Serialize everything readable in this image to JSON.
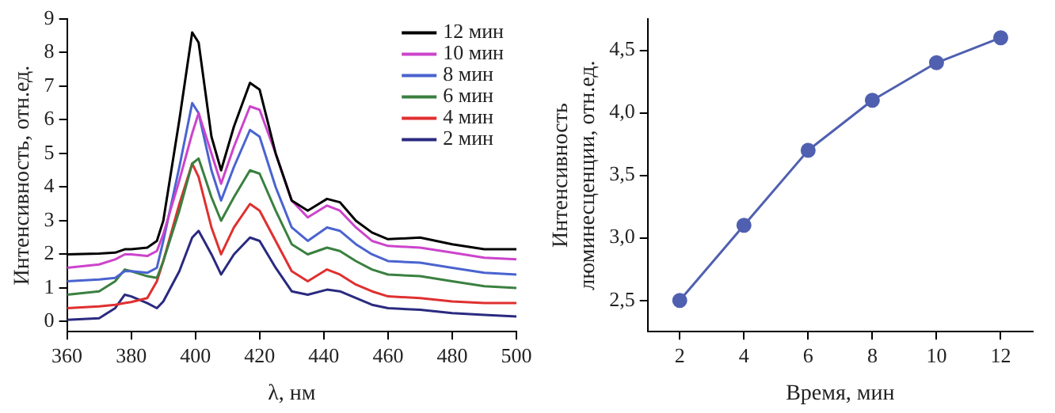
{
  "chart_data": [
    {
      "type": "line",
      "xlabel": "λ, нм",
      "ylabel": "Интенсивность, отн.ед.",
      "xlim": [
        360,
        500
      ],
      "xticks": [
        360,
        380,
        400,
        420,
        440,
        460,
        480,
        500
      ],
      "ylim": [
        -0.3,
        9
      ],
      "yticks": [
        0,
        1,
        2,
        3,
        4,
        5,
        6,
        7,
        8,
        9
      ],
      "grid": false,
      "legend": "top right",
      "marker": "none",
      "line_style": "solid",
      "x": [
        360,
        370,
        375,
        378,
        380,
        385,
        388,
        390,
        395,
        399,
        401,
        405,
        408,
        412,
        417,
        420,
        425,
        430,
        435,
        441,
        445,
        450,
        455,
        460,
        470,
        480,
        490,
        500
      ],
      "series": [
        {
          "name": "12 мин",
          "color": "#000000",
          "values": [
            2.0,
            2.02,
            2.05,
            2.15,
            2.15,
            2.2,
            2.4,
            3.0,
            6.0,
            8.6,
            8.3,
            5.5,
            4.5,
            5.8,
            7.1,
            6.9,
            5.0,
            3.6,
            3.3,
            3.65,
            3.55,
            3.0,
            2.65,
            2.45,
            2.5,
            2.3,
            2.15,
            2.15
          ]
        },
        {
          "name": "10 мин",
          "color": "#cc44cc",
          "values": [
            1.6,
            1.7,
            1.85,
            2.0,
            2.0,
            1.95,
            2.1,
            2.6,
            4.2,
            5.6,
            6.2,
            5.0,
            4.1,
            5.2,
            6.4,
            6.3,
            5.0,
            3.6,
            3.1,
            3.45,
            3.3,
            2.8,
            2.4,
            2.25,
            2.2,
            2.05,
            1.9,
            1.85
          ]
        },
        {
          "name": "8 мин",
          "color": "#4a63d0",
          "values": [
            1.2,
            1.25,
            1.3,
            1.5,
            1.5,
            1.45,
            1.6,
            2.4,
            4.6,
            6.5,
            6.2,
            4.5,
            3.6,
            4.6,
            5.7,
            5.5,
            4.0,
            2.8,
            2.4,
            2.8,
            2.7,
            2.3,
            2.0,
            1.8,
            1.75,
            1.6,
            1.45,
            1.4
          ]
        },
        {
          "name": "6 мин",
          "color": "#3a8040",
          "values": [
            0.8,
            0.9,
            1.2,
            1.55,
            1.5,
            1.35,
            1.3,
            1.8,
            3.3,
            4.7,
            4.85,
            3.7,
            3.0,
            3.7,
            4.5,
            4.4,
            3.3,
            2.3,
            2.0,
            2.2,
            2.1,
            1.8,
            1.55,
            1.4,
            1.35,
            1.2,
            1.05,
            1.0
          ]
        },
        {
          "name": "4 мин",
          "color": "#e03030",
          "values": [
            0.4,
            0.45,
            0.5,
            0.55,
            0.58,
            0.7,
            1.2,
            1.8,
            3.5,
            4.7,
            4.3,
            2.8,
            2.0,
            2.8,
            3.5,
            3.3,
            2.4,
            1.5,
            1.2,
            1.55,
            1.4,
            1.1,
            0.9,
            0.75,
            0.7,
            0.6,
            0.55,
            0.55
          ]
        },
        {
          "name": "2 мин",
          "color": "#2a2a80",
          "values": [
            0.05,
            0.1,
            0.4,
            0.8,
            0.75,
            0.55,
            0.4,
            0.6,
            1.5,
            2.5,
            2.7,
            2.0,
            1.4,
            2.0,
            2.5,
            2.4,
            1.6,
            0.9,
            0.8,
            0.95,
            0.9,
            0.7,
            0.5,
            0.4,
            0.35,
            0.25,
            0.2,
            0.15
          ]
        }
      ]
    },
    {
      "type": "line",
      "xlabel": "Время, мин",
      "ylabel": "Интенсивность\nлюминесценции, отн.ед.",
      "xlim": [
        1,
        13
      ],
      "xticks": [
        2,
        4,
        6,
        8,
        10,
        12
      ],
      "ylim": [
        2.25,
        4.75
      ],
      "yticks": [
        {
          "value": 2.5,
          "label": "2,5"
        },
        {
          "value": 3,
          "label": "3,0"
        },
        {
          "value": 3.5,
          "label": "3,5"
        },
        {
          "value": 4,
          "label": "4,0"
        },
        {
          "value": 4.5,
          "label": "4,5"
        }
      ],
      "grid": false,
      "marker": "circle",
      "line_style": "solid",
      "x": [
        2,
        4,
        6,
        8,
        10,
        12
      ],
      "series": [
        {
          "color": "#5060b0",
          "values": [
            2.5,
            3.1,
            3.7,
            4.1,
            4.4,
            4.6
          ]
        }
      ]
    }
  ]
}
